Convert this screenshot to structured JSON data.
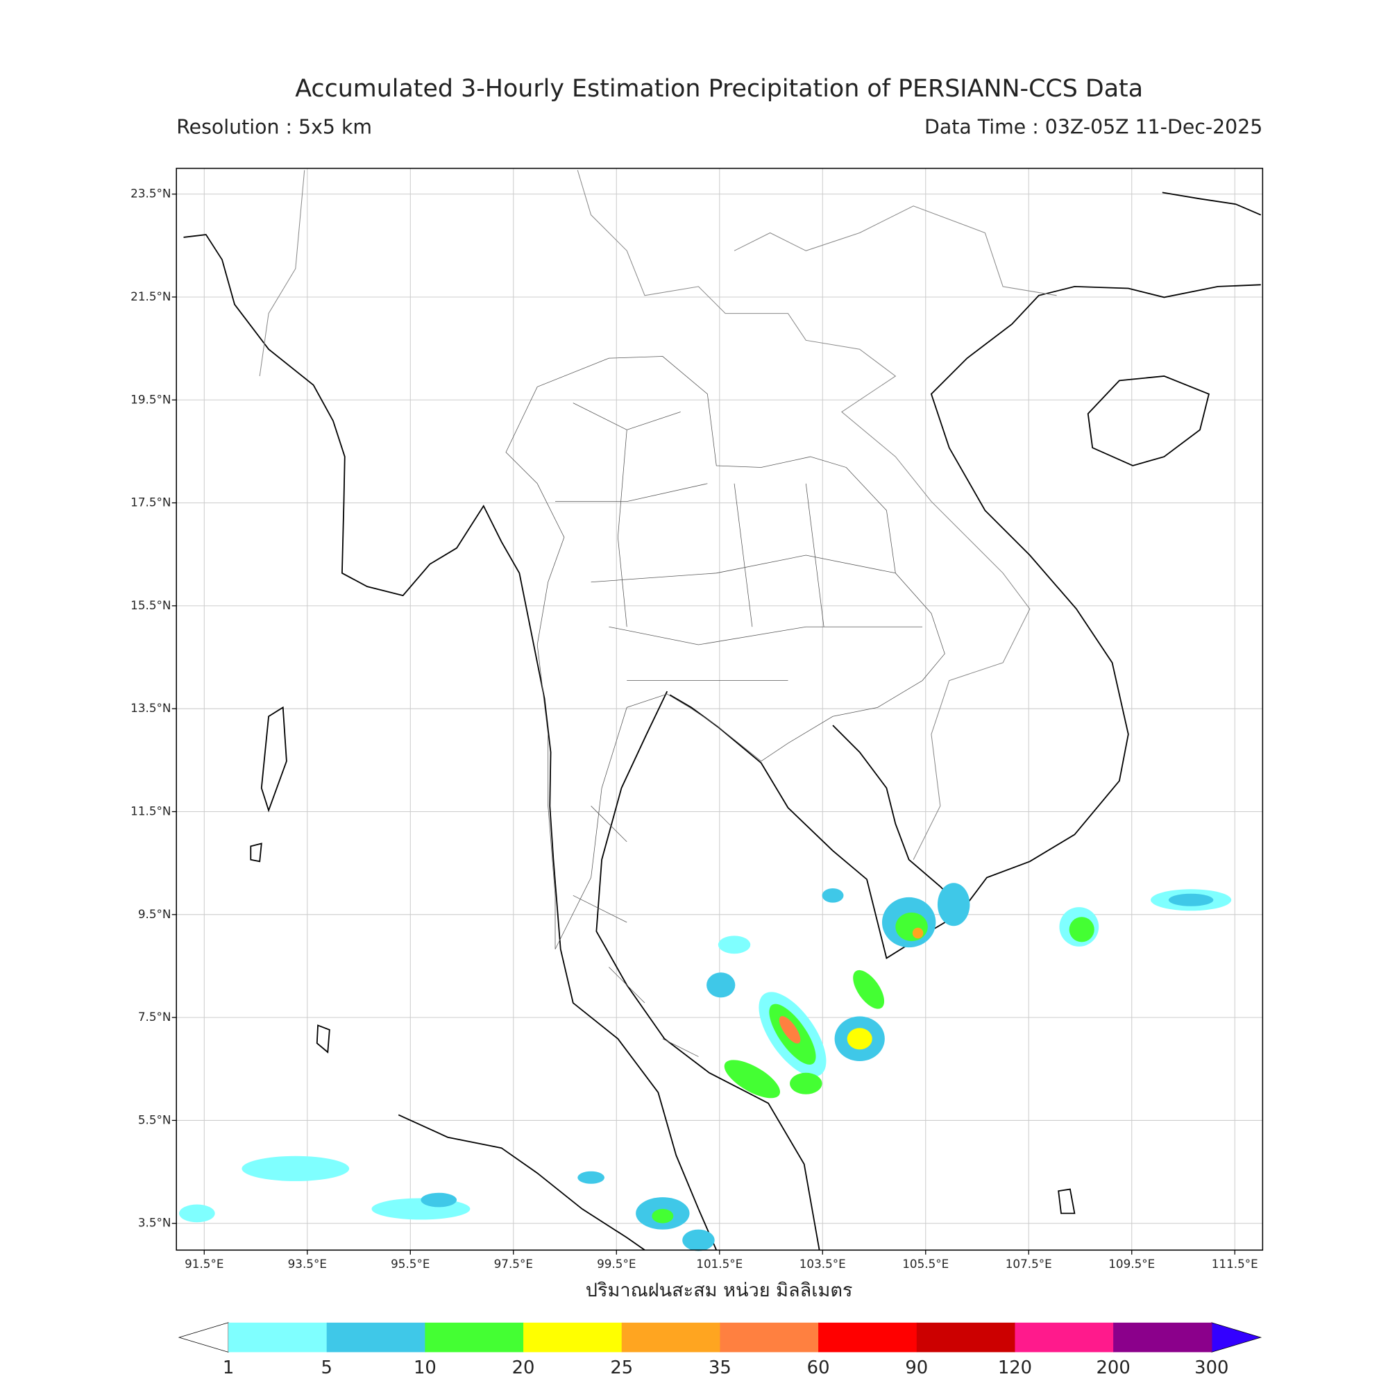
{
  "title": "Accumulated 3-Hourly Estimation Precipitation of PERSIANN-CCS Data",
  "resolution": "Resolution : 5x5 km",
  "data_time": "Data Time : 03Z-05Z 11-Dec-2025",
  "map": {
    "xlim": [
      90.96,
      112.04
    ],
    "ylim": [
      2.98,
      24.0
    ],
    "grid": true,
    "xticks": [
      {
        "value": 91.5,
        "label": "91.5°E"
      },
      {
        "value": 93.5,
        "label": "93.5°E"
      },
      {
        "value": 95.5,
        "label": "95.5°E"
      },
      {
        "value": 97.5,
        "label": "97.5°E"
      },
      {
        "value": 99.5,
        "label": "99.5°E"
      },
      {
        "value": 101.5,
        "label": "101.5°E"
      },
      {
        "value": 103.5,
        "label": "103.5°E"
      },
      {
        "value": 105.5,
        "label": "105.5°E"
      },
      {
        "value": 107.5,
        "label": "107.5°E"
      },
      {
        "value": 109.5,
        "label": "109.5°E"
      },
      {
        "value": 111.5,
        "label": "111.5°E"
      }
    ],
    "yticks": [
      {
        "value": 3.5,
        "label": "3.5°N"
      },
      {
        "value": 5.5,
        "label": "5.5°N"
      },
      {
        "value": 7.5,
        "label": "7.5°N"
      },
      {
        "value": 9.5,
        "label": "9.5°N"
      },
      {
        "value": 11.5,
        "label": "11.5°N"
      },
      {
        "value": 13.5,
        "label": "13.5°N"
      },
      {
        "value": 15.5,
        "label": "15.5°N"
      },
      {
        "value": 17.5,
        "label": "17.5°N"
      },
      {
        "value": 19.5,
        "label": "19.5°N"
      },
      {
        "value": 21.5,
        "label": "21.5°N"
      },
      {
        "value": 23.5,
        "label": "23.5°N"
      }
    ]
  },
  "xlabel": "ปริมาณฝนสะสม หน่วย มิลลิเมตร",
  "colorbar": {
    "levels": [
      1,
      5,
      10,
      20,
      25,
      35,
      60,
      90,
      120,
      200,
      300
    ],
    "colors": [
      "#7fffff",
      "#3fc8e8",
      "#44ff33",
      "#ffff00",
      "#ffa520",
      "#ff8040",
      "#ff0000",
      "#cc0000",
      "#ff1a8c",
      "#8b008b"
    ],
    "under_color": "#ffffff",
    "over_color": "#3300ff"
  }
}
